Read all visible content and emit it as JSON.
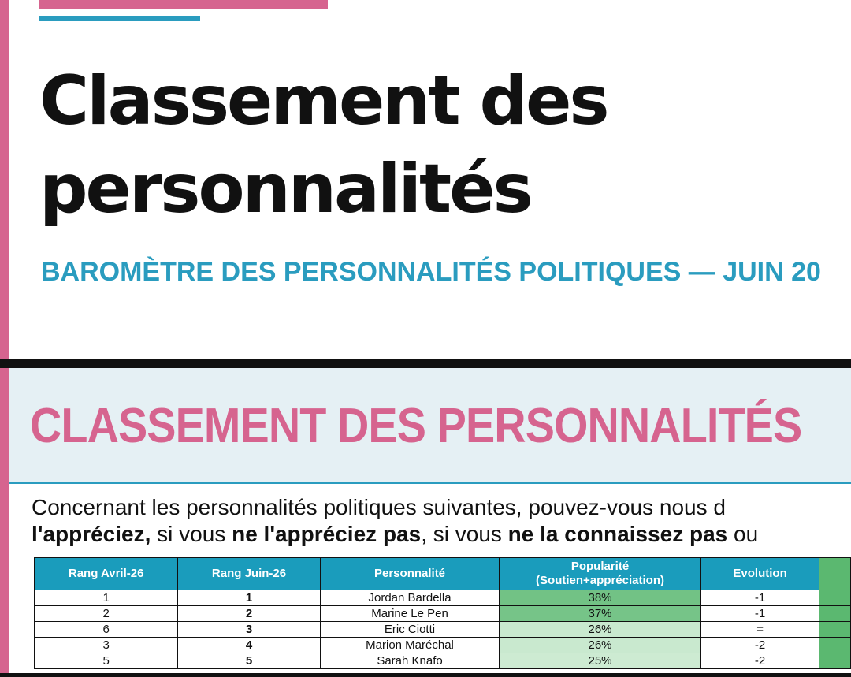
{
  "header": {
    "title_lines": [
      "Classement des",
      "personnalités"
    ],
    "subtitle": "BAROMÈTRE DES PERSONNALITÉS POLITIQUES — JUIN 20"
  },
  "section": {
    "heading": "CLASSEMENT DES PERSONNALITÉS",
    "question": {
      "line1": "Concernant les personnalités politiques suivantes, pouvez-vous nous d",
      "line2": [
        "l'appréciez,",
        " si vous ",
        "ne l'appréciez pas",
        ", si vous ",
        "ne la connaissez pas",
        " ou"
      ]
    }
  },
  "table": {
    "columns": [
      "Rang Avril-26",
      "Rang Juin-26",
      "Personnalité",
      "Popularité",
      "Evolution"
    ],
    "popularity_subtitle": "(Soutien+appréciation)",
    "rows": [
      [
        "1",
        "1",
        "Jordan Bardella",
        "38%",
        "-1"
      ],
      [
        "2",
        "2",
        "Marine Le Pen",
        "37%",
        "-1"
      ],
      [
        "6",
        "3",
        "Eric Ciotti",
        "26%",
        "="
      ],
      [
        "3",
        "4",
        "Marion Maréchal",
        "26%",
        "-2"
      ],
      [
        "5",
        "5",
        "Sarah Knafo",
        "25%",
        "-2"
      ]
    ],
    "popularity_colors": [
      "#72c285",
      "#76c488",
      "#c9e9cf",
      "#c9e9cf",
      "#cdebd2"
    ]
  }
}
